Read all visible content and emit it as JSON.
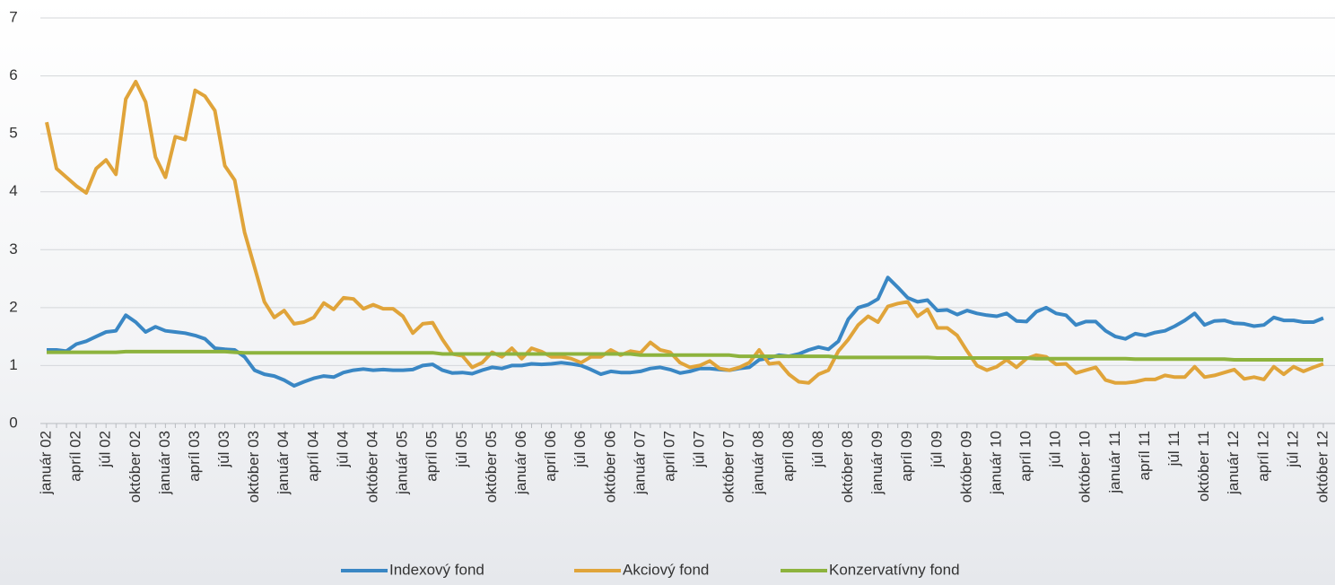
{
  "chart_data": {
    "type": "line",
    "categories": [
      "január 02",
      null,
      null,
      "apríl 02",
      null,
      null,
      "júl 02",
      null,
      null,
      "október 02",
      null,
      null,
      "január 03",
      null,
      null,
      "apríl 03",
      null,
      null,
      "júl 03",
      null,
      null,
      "október 03",
      null,
      null,
      "január 04",
      null,
      null,
      "apríl 04",
      null,
      null,
      "júl 04",
      null,
      null,
      "október 04",
      null,
      null,
      "január 05",
      null,
      null,
      "apríl 05",
      null,
      null,
      "júl 05",
      null,
      null,
      "október 05",
      null,
      null,
      "január 06",
      null,
      null,
      "apríl 06",
      null,
      null,
      "júl 06",
      null,
      null,
      "október 06",
      null,
      null,
      "január 07",
      null,
      null,
      "apríl 07",
      null,
      null,
      "júl 07",
      null,
      null,
      "október 07",
      null,
      null,
      "január 08",
      null,
      null,
      "apríl 08",
      null,
      null,
      "júl 08",
      null,
      null,
      "október 08",
      null,
      null,
      "január 09",
      null,
      null,
      "apríl 09",
      null,
      null,
      "júl 09",
      null,
      null,
      "október 09",
      null,
      null,
      "január 10",
      null,
      null,
      "apríl 10",
      null,
      null,
      "júl 10",
      null,
      null,
      "október 10",
      null,
      null,
      "január 11",
      null,
      null,
      "apríl 11",
      null,
      null,
      "júl 11",
      null,
      null,
      "október 11",
      null,
      null,
      "január 12",
      null,
      null,
      "apríl 12",
      null,
      null,
      "júl 12",
      null,
      null,
      "október 12"
    ],
    "series": [
      {
        "name": "Indexový fond",
        "color": "#3a87c4",
        "values": [
          1.27,
          1.27,
          1.25,
          1.37,
          1.42,
          1.5,
          1.58,
          1.6,
          1.87,
          1.75,
          1.58,
          1.67,
          1.6,
          1.58,
          1.56,
          1.52,
          1.46,
          1.3,
          1.28,
          1.27,
          1.15,
          0.92,
          0.85,
          0.82,
          0.75,
          0.65,
          0.72,
          0.78,
          0.82,
          0.8,
          0.88,
          0.92,
          0.94,
          0.92,
          0.93,
          0.92,
          0.92,
          0.93,
          1.0,
          1.02,
          0.92,
          0.87,
          0.88,
          0.86,
          0.92,
          0.97,
          0.95,
          1.0,
          1.0,
          1.03,
          1.02,
          1.03,
          1.05,
          1.03,
          1.0,
          0.93,
          0.85,
          0.9,
          0.88,
          0.88,
          0.9,
          0.95,
          0.97,
          0.93,
          0.87,
          0.9,
          0.95,
          0.95,
          0.93,
          0.92,
          0.95,
          0.97,
          1.1,
          1.13,
          1.18,
          1.16,
          1.2,
          1.27,
          1.32,
          1.28,
          1.42,
          1.8,
          2.0,
          2.05,
          2.15,
          2.52,
          2.35,
          2.17,
          2.1,
          2.13,
          1.95,
          1.96,
          1.88,
          1.95,
          1.9,
          1.87,
          1.85,
          1.9,
          1.77,
          1.76,
          1.93,
          2.0,
          1.9,
          1.87,
          1.7,
          1.76,
          1.76,
          1.6,
          1.5,
          1.46,
          1.55,
          1.52,
          1.57,
          1.6,
          1.68,
          1.78,
          1.9,
          1.7,
          1.77,
          1.78,
          1.73,
          1.72,
          1.68,
          1.7,
          1.83,
          1.78,
          1.78,
          1.75,
          1.75,
          1.82
        ]
      },
      {
        "name": "Akciový fond",
        "color": "#e0a43a",
        "values": [
          5.2,
          4.4,
          4.25,
          4.1,
          3.98,
          4.4,
          4.55,
          4.3,
          5.6,
          5.9,
          5.55,
          4.6,
          4.25,
          4.95,
          4.9,
          5.75,
          5.65,
          5.4,
          4.45,
          4.2,
          3.3,
          2.7,
          2.1,
          1.83,
          1.95,
          1.72,
          1.75,
          1.83,
          2.08,
          1.97,
          2.17,
          2.15,
          1.98,
          2.05,
          1.98,
          1.98,
          1.85,
          1.56,
          1.72,
          1.74,
          1.45,
          1.2,
          1.17,
          0.97,
          1.05,
          1.23,
          1.15,
          1.3,
          1.12,
          1.3,
          1.24,
          1.15,
          1.15,
          1.12,
          1.05,
          1.15,
          1.15,
          1.27,
          1.18,
          1.25,
          1.22,
          1.4,
          1.27,
          1.23,
          1.05,
          0.97,
          1.0,
          1.08,
          0.95,
          0.92,
          0.97,
          1.05,
          1.27,
          1.03,
          1.05,
          0.85,
          0.72,
          0.7,
          0.85,
          0.92,
          1.25,
          1.45,
          1.7,
          1.85,
          1.75,
          2.02,
          2.07,
          2.1,
          1.85,
          1.97,
          1.65,
          1.65,
          1.52,
          1.25,
          1.0,
          0.92,
          0.98,
          1.1,
          0.97,
          1.12,
          1.18,
          1.15,
          1.02,
          1.03,
          0.87,
          0.92,
          0.97,
          0.75,
          0.7,
          0.7,
          0.72,
          0.76,
          0.76,
          0.83,
          0.8,
          0.8,
          0.98,
          0.8,
          0.83,
          0.88,
          0.93,
          0.77,
          0.8,
          0.76,
          0.98,
          0.85,
          0.98,
          0.9,
          0.97,
          1.03
        ]
      },
      {
        "name": "Konzervatívny fond",
        "color": "#8db33d",
        "values": [
          1.23,
          1.23,
          1.23,
          1.23,
          1.23,
          1.23,
          1.23,
          1.23,
          1.24,
          1.24,
          1.24,
          1.24,
          1.24,
          1.24,
          1.24,
          1.24,
          1.24,
          1.24,
          1.24,
          1.23,
          1.22,
          1.22,
          1.22,
          1.22,
          1.22,
          1.22,
          1.22,
          1.22,
          1.22,
          1.22,
          1.22,
          1.22,
          1.22,
          1.22,
          1.22,
          1.22,
          1.22,
          1.22,
          1.22,
          1.22,
          1.2,
          1.2,
          1.2,
          1.2,
          1.2,
          1.2,
          1.2,
          1.2,
          1.2,
          1.2,
          1.2,
          1.2,
          1.2,
          1.2,
          1.2,
          1.2,
          1.2,
          1.2,
          1.2,
          1.2,
          1.18,
          1.18,
          1.18,
          1.18,
          1.18,
          1.18,
          1.18,
          1.18,
          1.18,
          1.18,
          1.16,
          1.16,
          1.16,
          1.16,
          1.16,
          1.16,
          1.16,
          1.16,
          1.16,
          1.16,
          1.14,
          1.14,
          1.14,
          1.14,
          1.14,
          1.14,
          1.14,
          1.14,
          1.14,
          1.14,
          1.13,
          1.13,
          1.13,
          1.13,
          1.13,
          1.13,
          1.13,
          1.13,
          1.13,
          1.13,
          1.12,
          1.12,
          1.12,
          1.12,
          1.12,
          1.12,
          1.12,
          1.12,
          1.12,
          1.12,
          1.11,
          1.11,
          1.11,
          1.11,
          1.11,
          1.11,
          1.11,
          1.11,
          1.11,
          1.11,
          1.1,
          1.1,
          1.1,
          1.1,
          1.1,
          1.1,
          1.1,
          1.1,
          1.1,
          1.1
        ]
      }
    ],
    "ylim": [
      0,
      7
    ],
    "yticks": [
      0,
      1,
      2,
      3,
      4,
      5,
      6,
      7
    ],
    "grid": true,
    "legend": "bottom"
  }
}
